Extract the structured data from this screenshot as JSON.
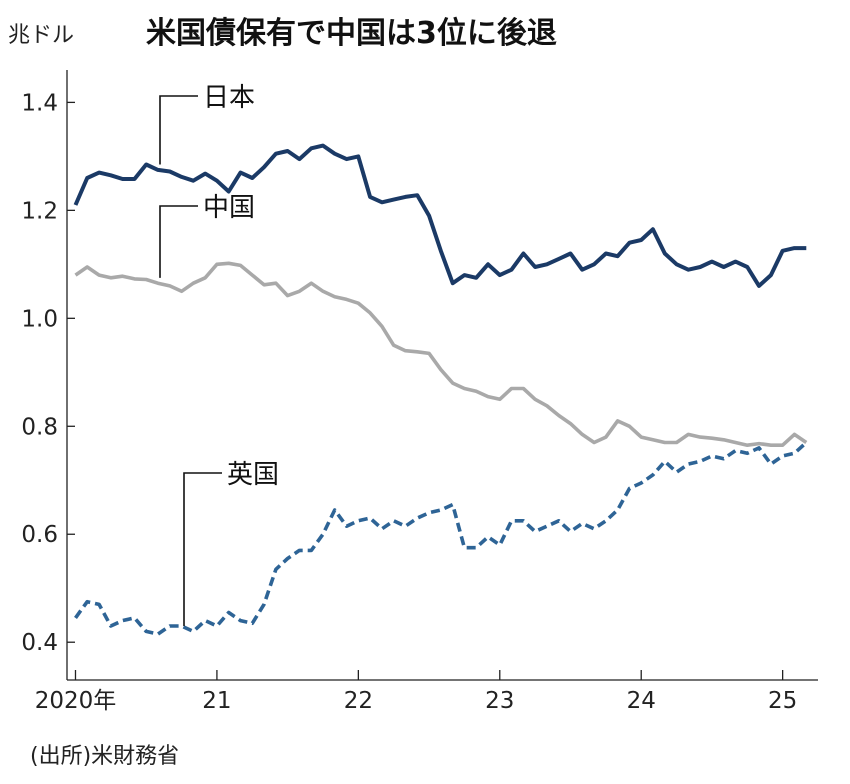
{
  "header": {
    "unit": "兆ドル",
    "title": "米国債保有で中国は3位に後退"
  },
  "source": "(出所)米財務省",
  "colors": {
    "japan": "#1b3a66",
    "china": "#a9a9a9",
    "uk": "#2e6496",
    "axis": "#222222"
  },
  "chart_data": {
    "type": "line",
    "title": "米国債保有で中国は3位に後退",
    "ylabel": "兆ドル",
    "ylim": [
      0.33,
      1.46
    ],
    "xlim": [
      2019.94,
      2025.25
    ],
    "yticks": [
      {
        "value": 0.4,
        "label": "0.4"
      },
      {
        "value": 0.6,
        "label": "0.6"
      },
      {
        "value": 0.8,
        "label": "0.8"
      },
      {
        "value": 1.0,
        "label": "1.0"
      },
      {
        "value": 1.2,
        "label": "1.2"
      },
      {
        "value": 1.4,
        "label": "1.4"
      }
    ],
    "xticks": [
      {
        "value": 2020,
        "label": "2020年"
      },
      {
        "value": 2021,
        "label": "21"
      },
      {
        "value": 2022,
        "label": "22"
      },
      {
        "value": 2023,
        "label": "23"
      },
      {
        "value": 2024,
        "label": "24"
      },
      {
        "value": 2025,
        "label": "25"
      }
    ],
    "series": [
      {
        "name": "日本",
        "style": "solid",
        "x": [
          2020.0,
          2020.083,
          2020.167,
          2020.25,
          2020.333,
          2020.417,
          2020.5,
          2020.583,
          2020.667,
          2020.75,
          2020.833,
          2020.917,
          2021.0,
          2021.083,
          2021.167,
          2021.25,
          2021.333,
          2021.417,
          2021.5,
          2021.583,
          2021.667,
          2021.75,
          2021.833,
          2021.917,
          2022.0,
          2022.083,
          2022.167,
          2022.25,
          2022.333,
          2022.417,
          2022.5,
          2022.583,
          2022.667,
          2022.75,
          2022.833,
          2022.917,
          2023.0,
          2023.083,
          2023.167,
          2023.25,
          2023.333,
          2023.417,
          2023.5,
          2023.583,
          2023.667,
          2023.75,
          2023.833,
          2023.917,
          2024.0,
          2024.083,
          2024.167,
          2024.25,
          2024.333,
          2024.417,
          2024.5,
          2024.583,
          2024.667,
          2024.75,
          2024.833,
          2024.917,
          2025.0,
          2025.083,
          2025.167
        ],
        "values": [
          1.21,
          1.26,
          1.27,
          1.265,
          1.258,
          1.258,
          1.285,
          1.275,
          1.272,
          1.262,
          1.255,
          1.268,
          1.255,
          1.235,
          1.27,
          1.26,
          1.28,
          1.305,
          1.31,
          1.295,
          1.315,
          1.32,
          1.305,
          1.295,
          1.3,
          1.225,
          1.215,
          1.22,
          1.225,
          1.228,
          1.19,
          1.125,
          1.065,
          1.08,
          1.075,
          1.1,
          1.08,
          1.09,
          1.12,
          1.095,
          1.1,
          1.11,
          1.12,
          1.09,
          1.1,
          1.12,
          1.115,
          1.14,
          1.145,
          1.165,
          1.12,
          1.1,
          1.09,
          1.095,
          1.105,
          1.095,
          1.105,
          1.095,
          1.06,
          1.08,
          1.125,
          1.13,
          1.13
        ]
      },
      {
        "name": "中国",
        "style": "solid",
        "x": [
          2020.0,
          2020.083,
          2020.167,
          2020.25,
          2020.333,
          2020.417,
          2020.5,
          2020.583,
          2020.667,
          2020.75,
          2020.833,
          2020.917,
          2021.0,
          2021.083,
          2021.167,
          2021.25,
          2021.333,
          2021.417,
          2021.5,
          2021.583,
          2021.667,
          2021.75,
          2021.833,
          2021.917,
          2022.0,
          2022.083,
          2022.167,
          2022.25,
          2022.333,
          2022.417,
          2022.5,
          2022.583,
          2022.667,
          2022.75,
          2022.833,
          2022.917,
          2023.0,
          2023.083,
          2023.167,
          2023.25,
          2023.333,
          2023.417,
          2023.5,
          2023.583,
          2023.667,
          2023.75,
          2023.833,
          2023.917,
          2024.0,
          2024.083,
          2024.167,
          2024.25,
          2024.333,
          2024.417,
          2024.5,
          2024.583,
          2024.667,
          2024.75,
          2024.833,
          2024.917,
          2025.0,
          2025.083,
          2025.167
        ],
        "values": [
          1.08,
          1.095,
          1.08,
          1.075,
          1.078,
          1.073,
          1.072,
          1.065,
          1.06,
          1.05,
          1.065,
          1.075,
          1.1,
          1.102,
          1.098,
          1.08,
          1.062,
          1.065,
          1.042,
          1.05,
          1.065,
          1.05,
          1.04,
          1.035,
          1.028,
          1.01,
          0.985,
          0.95,
          0.94,
          0.938,
          0.935,
          0.905,
          0.88,
          0.87,
          0.865,
          0.855,
          0.85,
          0.87,
          0.87,
          0.85,
          0.838,
          0.82,
          0.805,
          0.785,
          0.77,
          0.78,
          0.81,
          0.8,
          0.78,
          0.775,
          0.77,
          0.77,
          0.785,
          0.78,
          0.778,
          0.775,
          0.77,
          0.765,
          0.768,
          0.765,
          0.765,
          0.785,
          0.77
        ]
      },
      {
        "name": "英国",
        "style": "dashed",
        "x": [
          2020.0,
          2020.083,
          2020.167,
          2020.25,
          2020.333,
          2020.417,
          2020.5,
          2020.583,
          2020.667,
          2020.75,
          2020.833,
          2020.917,
          2021.0,
          2021.083,
          2021.167,
          2021.25,
          2021.333,
          2021.417,
          2021.5,
          2021.583,
          2021.667,
          2021.75,
          2021.833,
          2021.917,
          2022.0,
          2022.083,
          2022.167,
          2022.25,
          2022.333,
          2022.417,
          2022.5,
          2022.583,
          2022.667,
          2022.75,
          2022.833,
          2022.917,
          2023.0,
          2023.083,
          2023.167,
          2023.25,
          2023.333,
          2023.417,
          2023.5,
          2023.583,
          2023.667,
          2023.75,
          2023.833,
          2023.917,
          2024.0,
          2024.083,
          2024.167,
          2024.25,
          2024.333,
          2024.417,
          2024.5,
          2024.583,
          2024.667,
          2024.75,
          2024.833,
          2024.917,
          2025.0,
          2025.083,
          2025.167
        ],
        "values": [
          0.445,
          0.475,
          0.47,
          0.43,
          0.44,
          0.445,
          0.42,
          0.415,
          0.43,
          0.43,
          0.42,
          0.44,
          0.43,
          0.455,
          0.44,
          0.435,
          0.47,
          0.535,
          0.555,
          0.57,
          0.57,
          0.6,
          0.645,
          0.615,
          0.625,
          0.63,
          0.61,
          0.625,
          0.615,
          0.63,
          0.64,
          0.645,
          0.655,
          0.575,
          0.575,
          0.595,
          0.58,
          0.625,
          0.625,
          0.605,
          0.615,
          0.625,
          0.605,
          0.62,
          0.61,
          0.625,
          0.645,
          0.685,
          0.695,
          0.71,
          0.735,
          0.715,
          0.73,
          0.735,
          0.745,
          0.74,
          0.755,
          0.75,
          0.76,
          0.73,
          0.745,
          0.75,
          0.77
        ]
      }
    ],
    "annotations": [
      "日本",
      "中国",
      "英国"
    ]
  }
}
